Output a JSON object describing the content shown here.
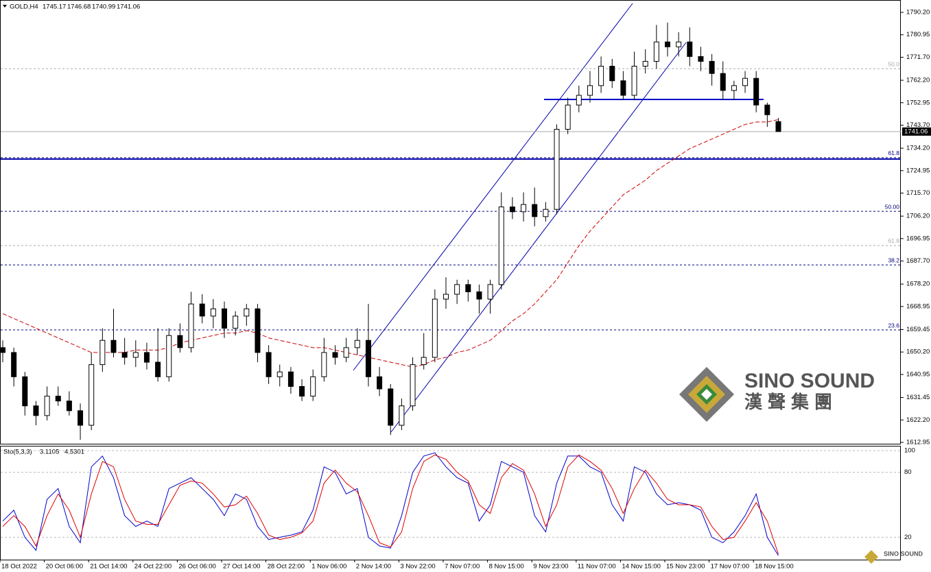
{
  "chart_data": {
    "type": "candlestick",
    "symbol": "GOLD,H4",
    "ylim": [
      1612.1,
      1795.29
    ],
    "yticks": [
      {
        "value": 1790.2,
        "label": "1790.20"
      },
      1780.95,
      {
        "value": 1771.7,
        "label": "1771.70"
      },
      {
        "value": 1762.2,
        "label": "1762.20"
      },
      1752.95,
      {
        "value": 1743.7,
        "label": "1743.70"
      },
      {
        "value": 1734.2,
        "label": "1734.20"
      },
      1724.95,
      {
        "value": 1715.7,
        "label": "1715.70"
      },
      {
        "value": 1706.2,
        "label": "1706.20"
      },
      1696.95,
      {
        "value": 1687.7,
        "label": "1687.70"
      },
      {
        "value": 1678.2,
        "label": "1678.20"
      },
      1668.95,
      1659.45,
      {
        "value": 1650.2,
        "label": "1650.20"
      },
      1640.95,
      1631.45,
      {
        "value": 1622.2,
        "label": "1622.20"
      },
      1612.95
    ],
    "x_labels": [
      "18 Oct 2022",
      "20 Oct 06:00",
      "21 Oct 14:00",
      "24 Oct 22:00",
      "26 Oct 06:00",
      "27 Oct 14:00",
      "28 Oct 22:00",
      "1 Nov 06:00",
      "2 Nov 14:00",
      "3 Nov 22:00",
      "7 Nov 07:00",
      "8 Nov 15:00",
      "9 Nov 23:00",
      "11 Nov 07:00",
      "14 Nov 15:00",
      "15 Nov 23:00",
      "17 Nov 07:00",
      "18 Nov 15:00"
    ],
    "candles": [
      {
        "open": 1652,
        "high": 1655,
        "low": 1646,
        "close": 1650
      },
      {
        "open": 1650,
        "high": 1652,
        "low": 1636,
        "close": 1640
      },
      {
        "open": 1640,
        "high": 1642,
        "low": 1624,
        "close": 1628
      },
      {
        "open": 1628,
        "high": 1630,
        "low": 1620,
        "close": 1624
      },
      {
        "open": 1624,
        "high": 1636,
        "low": 1622,
        "close": 1632
      },
      {
        "open": 1632,
        "high": 1636,
        "low": 1628,
        "close": 1630
      },
      {
        "open": 1630,
        "high": 1634,
        "low": 1624,
        "close": 1626
      },
      {
        "open": 1626,
        "high": 1629,
        "low": 1614,
        "close": 1620
      },
      {
        "open": 1620,
        "high": 1650,
        "low": 1618,
        "close": 1645
      },
      {
        "open": 1645,
        "high": 1660,
        "low": 1642,
        "close": 1655
      },
      {
        "open": 1655,
        "high": 1668,
        "low": 1648,
        "close": 1650
      },
      {
        "open": 1650,
        "high": 1656,
        "low": 1645,
        "close": 1648
      },
      {
        "open": 1648,
        "high": 1655,
        "low": 1644,
        "close": 1650
      },
      {
        "open": 1650,
        "high": 1654,
        "low": 1643,
        "close": 1646
      },
      {
        "open": 1646,
        "high": 1660,
        "low": 1638,
        "close": 1640
      },
      {
        "open": 1640,
        "high": 1660,
        "low": 1638,
        "close": 1657
      },
      {
        "open": 1657,
        "high": 1662,
        "low": 1650,
        "close": 1652
      },
      {
        "open": 1652,
        "high": 1675,
        "low": 1650,
        "close": 1670
      },
      {
        "open": 1670,
        "high": 1674,
        "low": 1662,
        "close": 1665
      },
      {
        "open": 1665,
        "high": 1672,
        "low": 1660,
        "close": 1668
      },
      {
        "open": 1668,
        "high": 1671,
        "low": 1656,
        "close": 1660
      },
      {
        "open": 1660,
        "high": 1667,
        "low": 1657,
        "close": 1665
      },
      {
        "open": 1665,
        "high": 1670,
        "low": 1661,
        "close": 1668
      },
      {
        "open": 1668,
        "high": 1670,
        "low": 1646,
        "close": 1650
      },
      {
        "open": 1650,
        "high": 1653,
        "low": 1637,
        "close": 1640
      },
      {
        "open": 1640,
        "high": 1645,
        "low": 1636,
        "close": 1642
      },
      {
        "open": 1642,
        "high": 1644,
        "low": 1633,
        "close": 1636
      },
      {
        "open": 1636,
        "high": 1639,
        "low": 1630,
        "close": 1632
      },
      {
        "open": 1632,
        "high": 1643,
        "low": 1630,
        "close": 1640
      },
      {
        "open": 1640,
        "high": 1656,
        "low": 1638,
        "close": 1650
      },
      {
        "open": 1650,
        "high": 1653,
        "low": 1645,
        "close": 1648
      },
      {
        "open": 1648,
        "high": 1656,
        "low": 1646,
        "close": 1652
      },
      {
        "open": 1652,
        "high": 1660,
        "low": 1649,
        "close": 1655
      },
      {
        "open": 1655,
        "high": 1670,
        "low": 1636,
        "close": 1640
      },
      {
        "open": 1640,
        "high": 1644,
        "low": 1632,
        "close": 1635
      },
      {
        "open": 1635,
        "high": 1637,
        "low": 1616,
        "close": 1620
      },
      {
        "open": 1620,
        "high": 1631,
        "low": 1618,
        "close": 1628
      },
      {
        "open": 1628,
        "high": 1648,
        "low": 1626,
        "close": 1645
      },
      {
        "open": 1645,
        "high": 1658,
        "low": 1643,
        "close": 1648
      },
      {
        "open": 1648,
        "high": 1676,
        "low": 1646,
        "close": 1672
      },
      {
        "open": 1672,
        "high": 1681,
        "low": 1668,
        "close": 1674
      },
      {
        "open": 1674,
        "high": 1680,
        "low": 1670,
        "close": 1678
      },
      {
        "open": 1678,
        "high": 1680,
        "low": 1671,
        "close": 1675
      },
      {
        "open": 1675,
        "high": 1678,
        "low": 1666,
        "close": 1672
      },
      {
        "open": 1672,
        "high": 1680,
        "low": 1666,
        "close": 1678
      },
      {
        "open": 1678,
        "high": 1716,
        "low": 1676,
        "close": 1710
      },
      {
        "open": 1710,
        "high": 1714,
        "low": 1705,
        "close": 1708
      },
      {
        "open": 1708,
        "high": 1716,
        "low": 1704,
        "close": 1711
      },
      {
        "open": 1711,
        "high": 1718,
        "low": 1702,
        "close": 1706
      },
      {
        "open": 1706,
        "high": 1712,
        "low": 1704,
        "close": 1709
      },
      {
        "open": 1709,
        "high": 1744,
        "low": 1707,
        "close": 1742
      },
      {
        "open": 1742,
        "high": 1755,
        "low": 1740,
        "close": 1752
      },
      {
        "open": 1752,
        "high": 1760,
        "low": 1749,
        "close": 1756
      },
      {
        "open": 1756,
        "high": 1766,
        "low": 1753,
        "close": 1760
      },
      {
        "open": 1760,
        "high": 1772,
        "low": 1757,
        "close": 1768
      },
      {
        "open": 1768,
        "high": 1771,
        "low": 1759,
        "close": 1762
      },
      {
        "open": 1762,
        "high": 1766,
        "low": 1754,
        "close": 1756
      },
      {
        "open": 1756,
        "high": 1774,
        "low": 1754,
        "close": 1768
      },
      {
        "open": 1768,
        "high": 1775,
        "low": 1765,
        "close": 1770
      },
      {
        "open": 1770,
        "high": 1785,
        "low": 1767,
        "close": 1778
      },
      {
        "open": 1778,
        "high": 1786,
        "low": 1772,
        "close": 1776
      },
      {
        "open": 1776,
        "high": 1782,
        "low": 1772,
        "close": 1778
      },
      {
        "open": 1778,
        "high": 1784,
        "low": 1768,
        "close": 1772
      },
      {
        "open": 1772,
        "high": 1776,
        "low": 1766,
        "close": 1770
      },
      {
        "open": 1770,
        "high": 1773,
        "low": 1760,
        "close": 1765
      },
      {
        "open": 1765,
        "high": 1770,
        "low": 1754,
        "close": 1758
      },
      {
        "open": 1758,
        "high": 1762,
        "low": 1754,
        "close": 1760
      },
      {
        "open": 1760,
        "high": 1766,
        "low": 1757,
        "close": 1763
      },
      {
        "open": 1763,
        "high": 1766,
        "low": 1749,
        "close": 1752
      },
      {
        "open": 1752,
        "high": 1753,
        "low": 1743,
        "close": 1748
      },
      {
        "open": 1745.17,
        "high": 1746.68,
        "low": 1740.99,
        "close": 1741.06
      }
    ],
    "moving_average": {
      "color": "#cc0000",
      "values": [
        1666,
        1664,
        1662,
        1660,
        1658,
        1656,
        1654,
        1652,
        1650,
        1650,
        1650,
        1650,
        1651,
        1651,
        1651,
        1652,
        1654,
        1655,
        1656,
        1657,
        1658,
        1658,
        1659,
        1658,
        1656,
        1655,
        1654,
        1653,
        1652,
        1652,
        1651,
        1650,
        1649,
        1648,
        1647,
        1646,
        1645,
        1644,
        1645,
        1647,
        1648,
        1650,
        1651,
        1653,
        1655,
        1659,
        1663,
        1666,
        1670,
        1675,
        1680,
        1687,
        1694,
        1700,
        1705,
        1710,
        1715,
        1718,
        1721,
        1725,
        1728,
        1731,
        1734,
        1736,
        1738,
        1740,
        1742,
        1744,
        1745,
        1745,
        1746
      ]
    },
    "levels": [
      {
        "price": 1767,
        "text": "50.0",
        "color": "#aaaaaa"
      },
      {
        "price": 1730.3,
        "text": "61.8",
        "color": "#000080"
      },
      {
        "price": 1708.2,
        "text": "50.00",
        "color": "#000080"
      },
      {
        "price": 1694.1,
        "text": "61.8",
        "color": "#aaaaaa"
      },
      {
        "price": 1686.1,
        "text": "38.2",
        "color": "#000080"
      },
      {
        "price": 1659.3,
        "text": "23.6",
        "color": "#000080"
      }
    ],
    "stochastic": {
      "title": "Sto(5,3,3)",
      "ylim": [
        0,
        100
      ],
      "yticks": [
        20,
        80,
        100
      ],
      "series": [
        {
          "color": "#0000cc",
          "values": [
            35,
            45,
            20,
            8,
            55,
            65,
            30,
            15,
            85,
            95,
            75,
            40,
            30,
            35,
            30,
            65,
            70,
            75,
            65,
            55,
            40,
            60,
            55,
            30,
            18,
            20,
            22,
            25,
            45,
            85,
            80,
            60,
            65,
            20,
            12,
            10,
            40,
            80,
            95,
            98,
            85,
            75,
            70,
            35,
            50,
            90,
            85,
            80,
            40,
            25,
            70,
            95,
            95,
            85,
            80,
            50,
            35,
            85,
            80,
            60,
            50,
            52,
            50,
            45,
            20,
            15,
            25,
            40,
            60,
            20,
            3.1105
          ]
        },
        {
          "color": "#dd0000",
          "values": [
            30,
            40,
            30,
            12,
            40,
            60,
            45,
            20,
            60,
            90,
            85,
            55,
            35,
            32,
            32,
            50,
            68,
            72,
            70,
            60,
            48,
            50,
            58,
            42,
            22,
            18,
            20,
            24,
            35,
            70,
            82,
            70,
            62,
            40,
            15,
            11,
            25,
            65,
            90,
            96,
            92,
            80,
            72,
            50,
            42,
            75,
            88,
            82,
            60,
            30,
            50,
            85,
            96,
            90,
            82,
            65,
            42,
            65,
            82,
            70,
            55,
            50,
            50,
            48,
            30,
            18,
            20,
            35,
            52,
            35,
            4.5301
          ]
        }
      ]
    },
    "watermark": {
      "title": "SINO SOUND",
      "subtitle": "漢聲集團"
    }
  }
}
